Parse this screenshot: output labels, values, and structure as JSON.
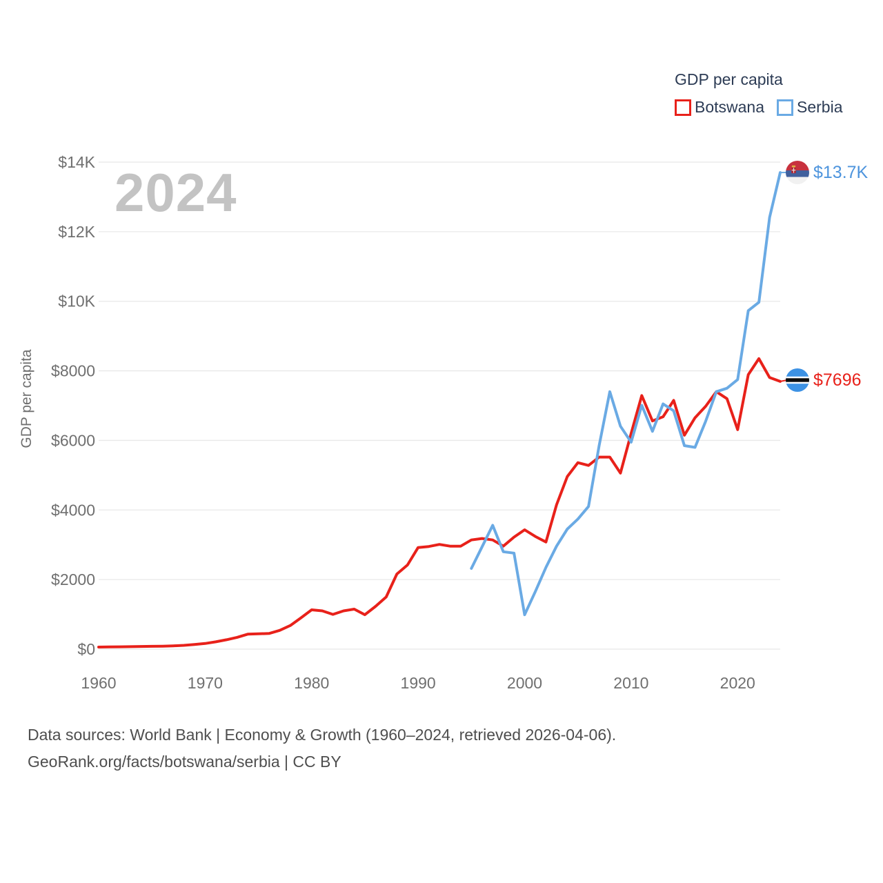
{
  "legend": {
    "title": "GDP per capita",
    "items": [
      {
        "label": "Botswana",
        "color": "#e8211a"
      },
      {
        "label": "Serbia",
        "color": "#6aaae4"
      }
    ]
  },
  "watermark": "2024",
  "end_labels": {
    "serbia": {
      "text": "$13.7K",
      "color": "#4d94dd",
      "flag": "serbia-flag",
      "value": 13700
    },
    "botswana": {
      "text": "$7696",
      "color": "#e8211a",
      "flag": "botswana-flag",
      "value": 7696
    }
  },
  "footer": {
    "line1": "Data sources: World Bank | Economy & Growth (1960–2024, retrieved 2026-04-06).",
    "line2": "GeoRank.org/facts/botswana/serbia | CC BY"
  },
  "chart_data": {
    "type": "line",
    "title": "GDP per capita",
    "xlabel": "",
    "ylabel": "GDP per capita",
    "xlim": [
      1960,
      2024
    ],
    "ylim": [
      0,
      14000
    ],
    "grid": "horizontal",
    "legend_position": "top-right",
    "x_ticks": [
      1960,
      1970,
      1980,
      1990,
      2000,
      2010,
      2020
    ],
    "y_ticks": [
      {
        "value": 0,
        "label": "$0"
      },
      {
        "value": 2000,
        "label": "$2000"
      },
      {
        "value": 4000,
        "label": "$4000"
      },
      {
        "value": 6000,
        "label": "$6000"
      },
      {
        "value": 8000,
        "label": "$8000"
      },
      {
        "value": 10000,
        "label": "$10K"
      },
      {
        "value": 12000,
        "label": "$12K"
      },
      {
        "value": 14000,
        "label": "$14K"
      }
    ],
    "series": [
      {
        "name": "Botswana",
        "color": "#e8211a",
        "start_year": 1960,
        "values": [
          60,
          64,
          68,
          72,
          77,
          81,
          86,
          95,
          110,
          135,
          163,
          210,
          270,
          340,
          430,
          440,
          450,
          540,
          680,
          900,
          1130,
          1100,
          1000,
          1100,
          1150,
          990,
          1230,
          1500,
          2160,
          2420,
          2920,
          2950,
          3010,
          2960,
          2960,
          3140,
          3180,
          3140,
          2960,
          3220,
          3430,
          3240,
          3080,
          4150,
          4960,
          5360,
          5280,
          5520,
          5520,
          5060,
          6200,
          7290,
          6560,
          6680,
          7150,
          6150,
          6650,
          6980,
          7400,
          7200,
          6310,
          7890,
          8350,
          7810,
          7696
        ]
      },
      {
        "name": "Serbia",
        "color": "#6aaae4",
        "start_year": 1995,
        "values": [
          2320,
          2940,
          3560,
          2800,
          2760,
          990,
          1650,
          2350,
          2960,
          3450,
          3740,
          4100,
          5860,
          7400,
          6410,
          5950,
          7010,
          6260,
          7050,
          6850,
          5850,
          5800,
          6550,
          7400,
          7500,
          7750,
          9730,
          9970,
          12410,
          13700
        ]
      }
    ]
  }
}
